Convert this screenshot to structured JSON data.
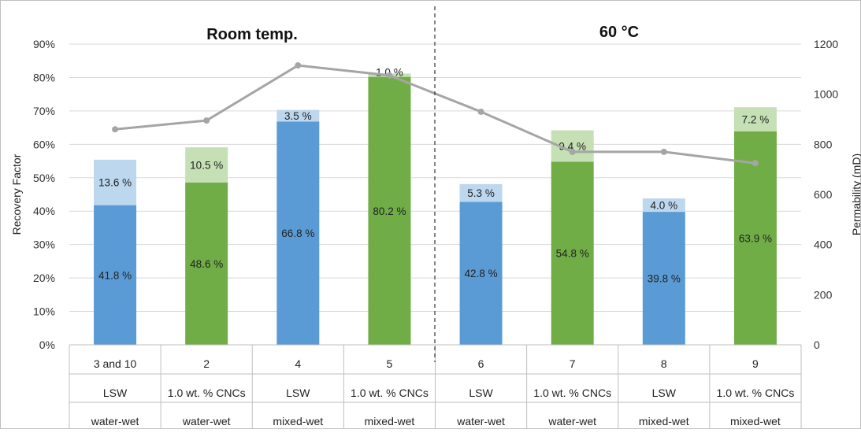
{
  "colors": {
    "lsw": "#5b9bd5",
    "lsw_light": "#bdd7ee",
    "cnc": "#70ad47",
    "cnc_light": "#c5e0b4",
    "line": "#a5a5a5"
  },
  "chart_data": {
    "type": "bar",
    "stacked": true,
    "titles": [
      "Room temp.",
      "60 °C"
    ],
    "ylabel": "Recovery Factor",
    "y2label": "Permability (mD)",
    "ylim": [
      0,
      90
    ],
    "y2lim": [
      0,
      1200
    ],
    "y_ticks": [
      "0%",
      "10%",
      "20%",
      "30%",
      "40%",
      "50%",
      "60%",
      "70%",
      "80%",
      "90%"
    ],
    "y2_ticks": [
      "0",
      "200",
      "400",
      "600",
      "800",
      "1000",
      "1200"
    ],
    "categories": [
      {
        "id": "3 and 10",
        "fluid": "LSW",
        "wet": "water-wet"
      },
      {
        "id": "2",
        "fluid": "1.0 wt. % CNCs",
        "wet": "water-wet"
      },
      {
        "id": "4",
        "fluid": "LSW",
        "wet": "mixed-wet"
      },
      {
        "id": "5",
        "fluid": "1.0 wt. % CNCs",
        "wet": "mixed-wet"
      },
      {
        "id": "6",
        "fluid": "LSW",
        "wet": "water-wet"
      },
      {
        "id": "7",
        "fluid": "1.0 wt. % CNCs",
        "wet": "water-wet"
      },
      {
        "id": "8",
        "fluid": "LSW",
        "wet": "mixed-wet"
      },
      {
        "id": "9",
        "fluid": "1.0 wt. % CNCs",
        "wet": "mixed-wet"
      }
    ],
    "series": [
      {
        "values": [
          41.8,
          48.6,
          66.8,
          80.2,
          42.8,
          54.8,
          39.8,
          63.9
        ],
        "labels": [
          "41.8 %",
          "48.6 %",
          "66.8 %",
          "80.2 %",
          "42.8 %",
          "54.8 %",
          "39.8 %",
          "63.9 %"
        ]
      },
      {
        "values": [
          13.6,
          10.5,
          3.5,
          1.0,
          5.3,
          9.4,
          4.0,
          7.2
        ],
        "labels": [
          "13.6 %",
          "10.5 %",
          "3.5 %",
          "1.0 %",
          "5.3 %",
          "9.4 %",
          "4.0 %",
          "7.2 %"
        ]
      }
    ],
    "permeability": [
      860,
      895,
      1115,
      1075,
      930,
      770,
      770,
      725
    ]
  }
}
